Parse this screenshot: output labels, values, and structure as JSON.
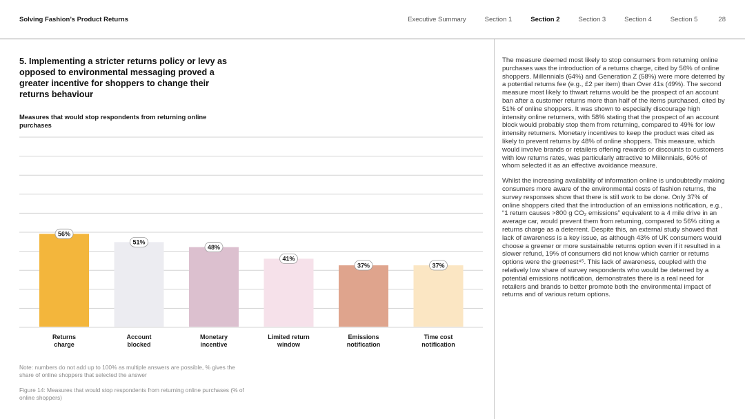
{
  "header": {
    "doc_title": "Solving Fashion’s Product Returns",
    "nav": [
      "Executive Summary",
      "Section 1",
      "Section 2",
      "Section 3",
      "Section 4",
      "Section 5"
    ],
    "active_section": "Section 2",
    "page_number": "28"
  },
  "headline": "5. Implementing a stricter returns policy or levy as opposed to environmental messaging proved a greater incentive for shoppers to change their returns behaviour",
  "chart_title": "Measures that would stop respondents from returning online purchases",
  "chart_data": {
    "type": "bar",
    "title": "Measures that would stop respondents from returning online purchases",
    "categories": [
      "Returns charge",
      "Account blocked",
      "Monetary incentive",
      "Limited return window",
      "Emissions notification",
      "Time cost notification"
    ],
    "category_lines": [
      [
        "Returns",
        "charge"
      ],
      [
        "Account",
        "blocked"
      ],
      [
        "Monetary",
        "incentive"
      ],
      [
        "Limited return",
        "window"
      ],
      [
        "Emissions",
        "notification"
      ],
      [
        "Time cost",
        "notification"
      ]
    ],
    "values": [
      56,
      51,
      48,
      41,
      37,
      37
    ],
    "value_labels": [
      "56%",
      "51%",
      "48%",
      "41%",
      "37%",
      "37%"
    ],
    "colors": [
      "#f3b63c",
      "#ececf1",
      "#dcc0cf",
      "#f6e1ea",
      "#dfa48d",
      "#fbe6c3"
    ],
    "unit": "% of online shoppers",
    "ylim": [
      0,
      100
    ],
    "xlabel": "",
    "ylabel": "",
    "grid": true
  },
  "note": "Note: numbers do not add up to 100% as multiple answers are possible, % gives the share of online shoppers that selected the answer",
  "caption": "Figure 14: Measures that would stop respondents from returning online purchases (% of online shoppers)",
  "body_paragraphs": [
    "The measure deemed most likely to stop consumers from returning online purchases was the introduction of a returns charge, cited by 56% of online shoppers. Millennials (64%) and Generation Z (58%) were more deterred by a potential returns fee (e.g., £2 per item) than Over 41s (49%). The second measure most likely to thwart returns would be the prospect of an account ban after a customer returns more than half of the items purchased, cited by 51% of online shoppers. It was shown to especially discourage high intensity online returners, with 58% stating that the prospect of an account block would probably stop them from returning, compared to 49% for low intensity returners. Monetary incentives to keep the product was cited as likely to prevent returns by 48% of online shoppers. This measure, which would involve brands or retailers offering rewards or discounts to customers with low returns rates, was particularly attractive to Millennials, 60% of whom selected it as an effective avoidance measure.",
    "Whilst the increasing availability of information online is undoubtedly making consumers more aware of the environmental costs of fashion returns, the survey responses show that there is still work to be done. Only 37% of online shoppers cited that the introduction of an emissions notification, e.g., “1 return causes >800 g CO₂ emissions” equivalent to a 4 mile drive in an average car, would prevent them from returning, compared to 56% citing a returns charge as a deterrent. Despite this, an external study showed that lack of awareness is a key issue, as although 43% of UK consumers would choose a greener or more sustainable returns option even if it resulted in a slower refund, 19% of consumers did not know which carrier or returns options were the greenest⁴⁵. This lack of awareness, coupled with the relatively low share of survey respondents who would be deterred by a potential emissions notification, demonstrates there is a real need for retailers and brands to better promote both the environmental impact of returns and of various return options."
  ]
}
